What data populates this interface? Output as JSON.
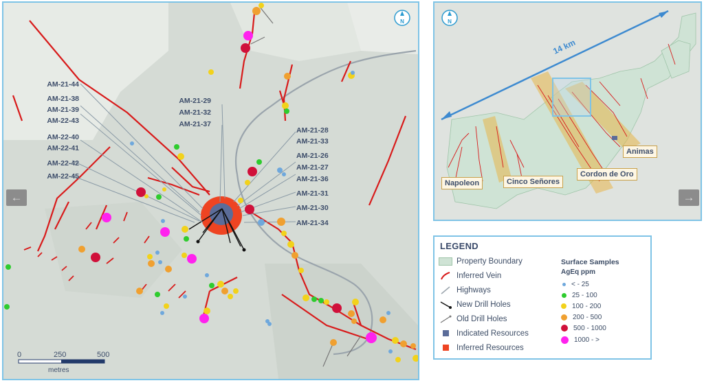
{
  "north": "N",
  "scale_bar": {
    "ticks": [
      "0",
      "250",
      "500"
    ],
    "unit": "metres"
  },
  "drill_labels_left": [
    "AM-21-44",
    "AM-21-38",
    "AM-21-39",
    "AM-22-43",
    "AM-22-40",
    "AM-22-41",
    "AM-22-42",
    "AM-22-45"
  ],
  "drill_labels_mid": [
    "AM-21-29",
    "AM-21-32",
    "AM-21-37"
  ],
  "drill_labels_right": [
    "AM-21-28",
    "AM-21-33",
    "AM-21-26",
    "AM-21-27",
    "AM-21-36",
    "AM-21-31",
    "AM-21-30",
    "AM-21-34"
  ],
  "inset": {
    "distance": "14 km",
    "places": [
      "Napoleon",
      "Cinco Señores",
      "Cordon de Oro",
      "Animas"
    ]
  },
  "legend": {
    "title": "LEGEND",
    "items": [
      "Property Boundary",
      "Inferred Vein",
      "Highways",
      "New Drill Holes",
      "Old Drill Holes",
      "Indicated Resources",
      "Inferred Resources"
    ],
    "samples_title": "Surface Samples",
    "samples_unit": "AgEq ppm",
    "sample_classes": [
      "< - 25",
      "25 - 100",
      "100 - 200",
      "200 - 500",
      "500 - 1000",
      "1000 - >"
    ],
    "colors": {
      "lt25": "#6fa8dc",
      "c25_100": "#2ecc2e",
      "c100_200": "#f2d21b",
      "c200_500": "#f0a030",
      "c500_1000": "#d0103a",
      "c1000": "#ff22ee",
      "vein": "#d81a1a",
      "boundary": "#cfe3d5",
      "indicated": "#5b6c99",
      "inferred": "#ee4422"
    }
  }
}
